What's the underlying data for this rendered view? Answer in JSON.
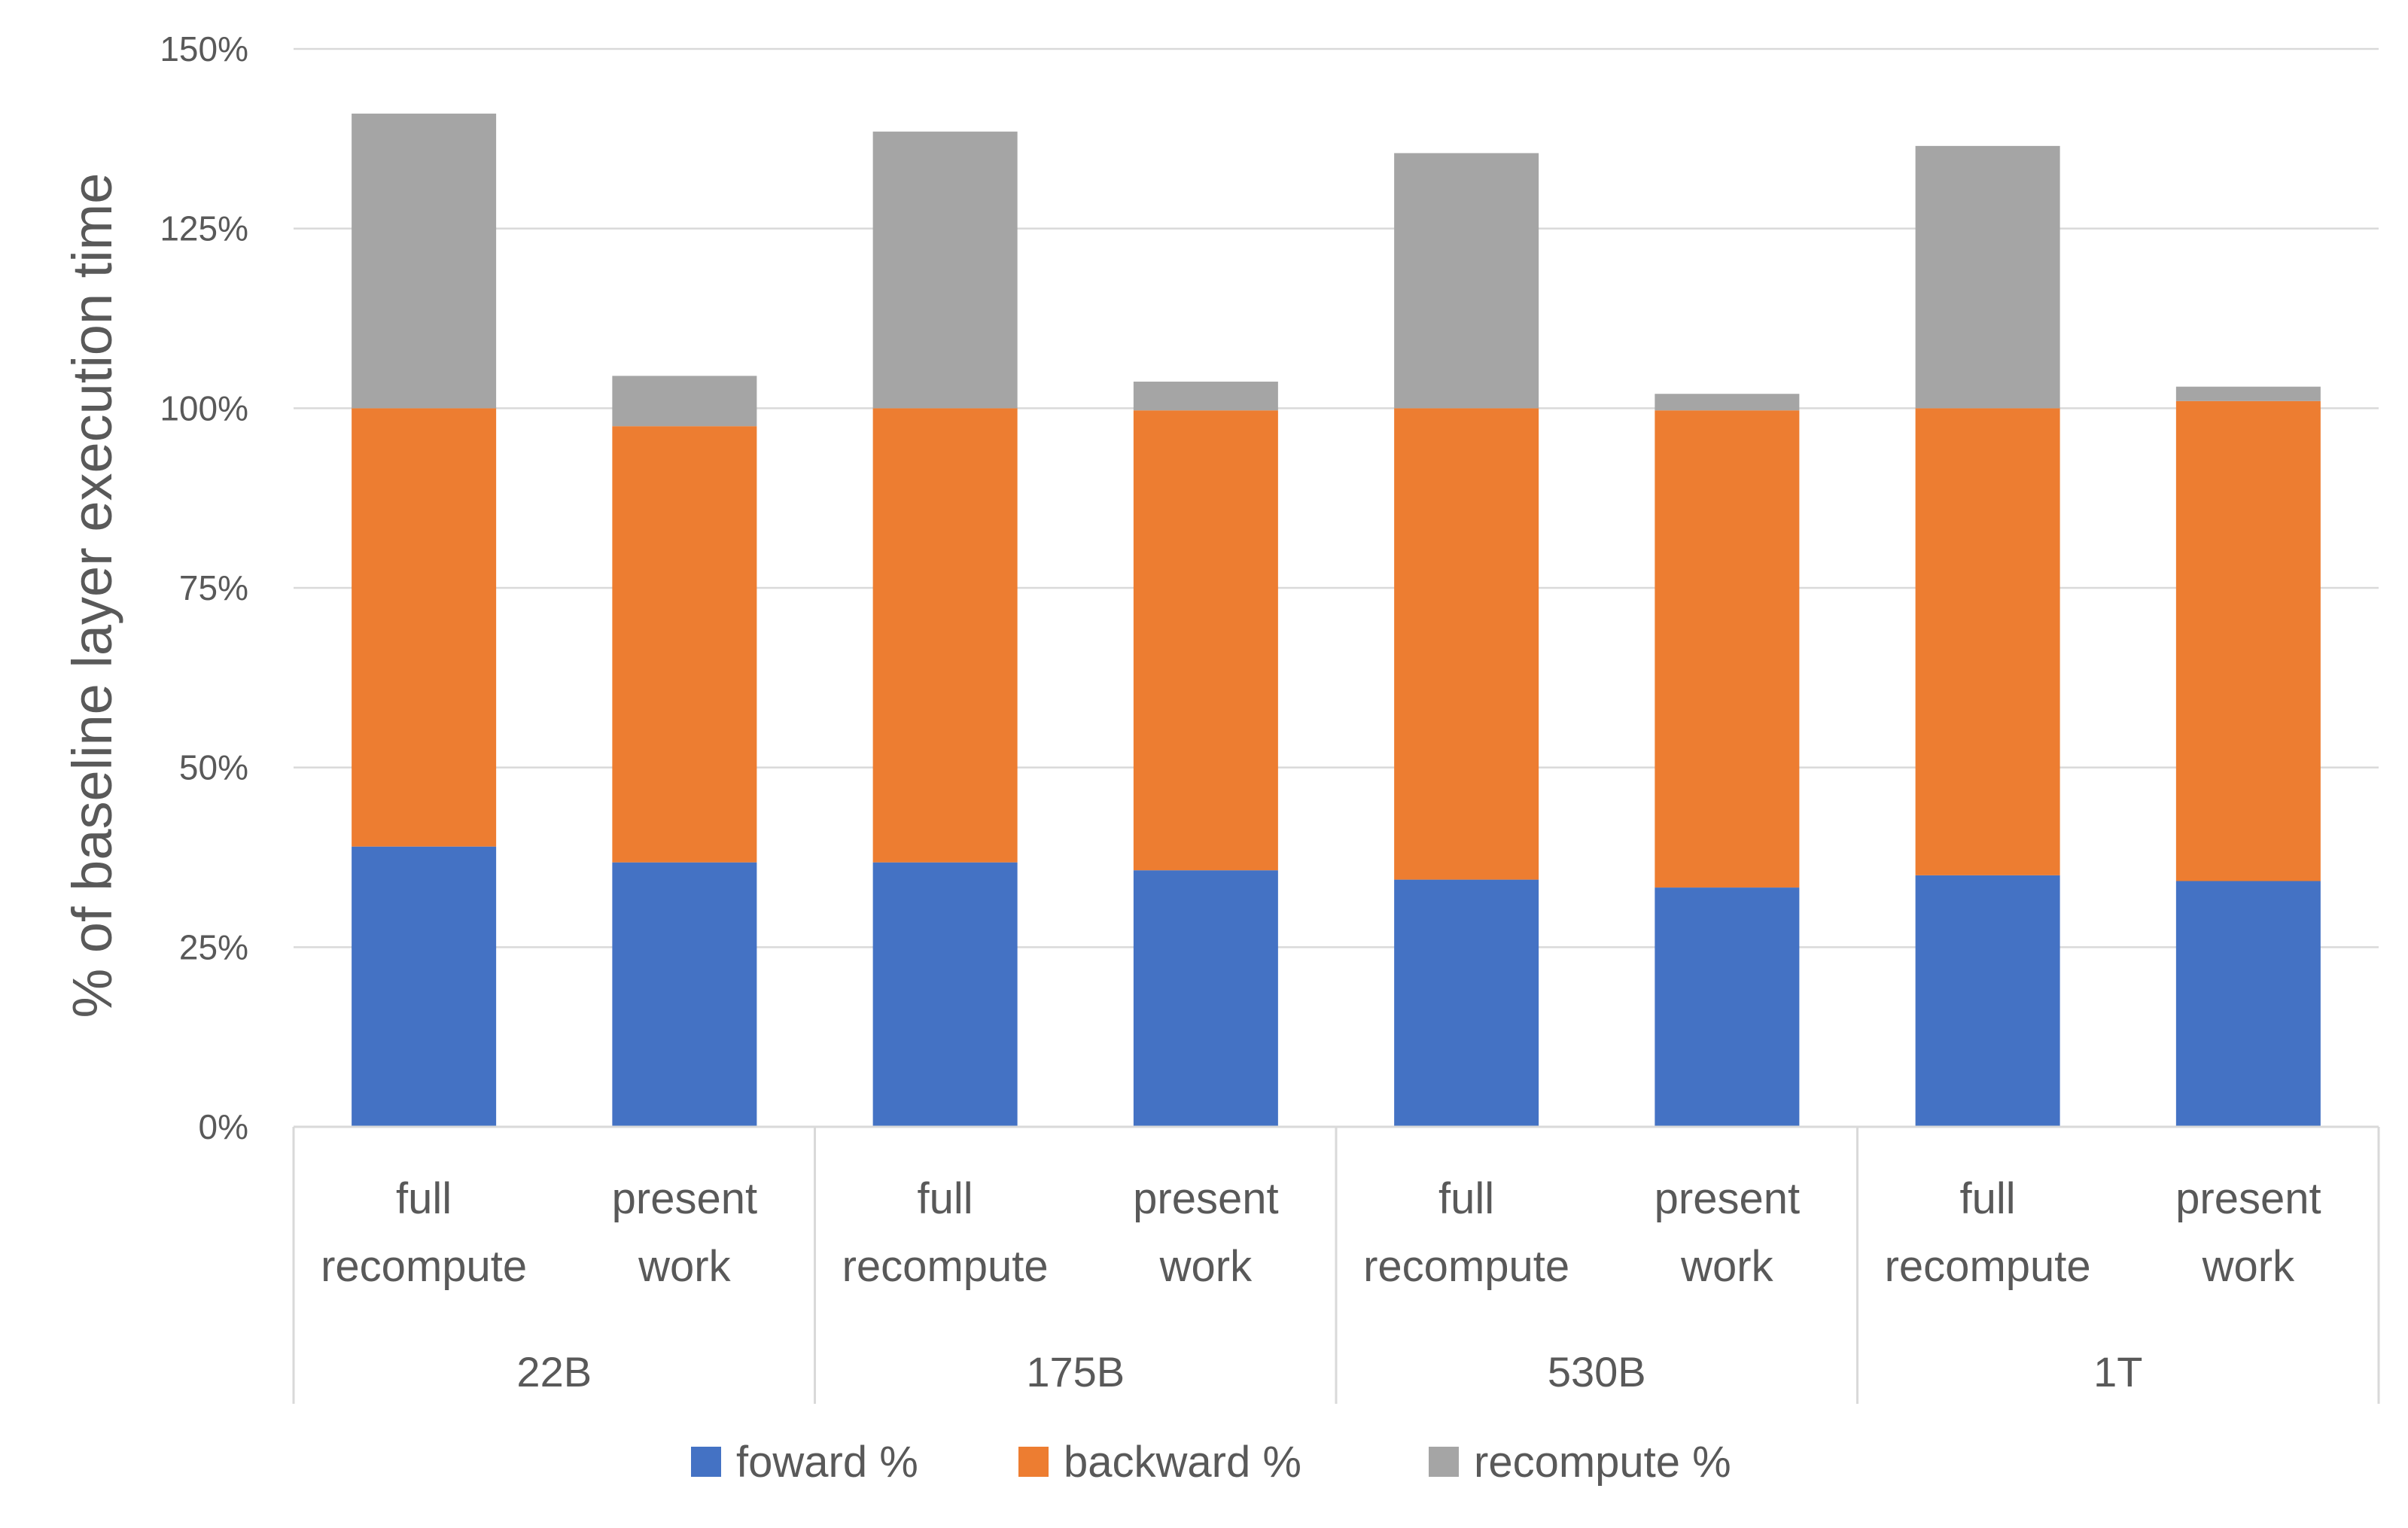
{
  "chart_data": {
    "type": "bar",
    "stacked": true,
    "title": "",
    "ylabel": "% of baseline layer execution time",
    "xlabel": "",
    "ylim": [
      0,
      150
    ],
    "yticks": [
      0,
      25,
      50,
      75,
      100,
      125,
      150
    ],
    "ytick_labels": [
      "0%",
      "25%",
      "50%",
      "75%",
      "100%",
      "125%",
      "150%"
    ],
    "grid": true,
    "legend_position": "bottom",
    "groups": [
      {
        "label": "22B",
        "bars": [
          {
            "label_lines": [
              "full",
              "recompute"
            ],
            "values": [
              39,
              61,
              41
            ]
          },
          {
            "label_lines": [
              "present",
              "work"
            ],
            "values": [
              36.8,
              60.7,
              7
            ]
          }
        ]
      },
      {
        "label": "175B",
        "bars": [
          {
            "label_lines": [
              "full",
              "recompute"
            ],
            "values": [
              36.8,
              63.2,
              38.5
            ]
          },
          {
            "label_lines": [
              "present",
              "work"
            ],
            "values": [
              35.7,
              64,
              4
            ]
          }
        ]
      },
      {
        "label": "530B",
        "bars": [
          {
            "label_lines": [
              "full",
              "recompute"
            ],
            "values": [
              34.4,
              65.6,
              35.5
            ]
          },
          {
            "label_lines": [
              "present",
              "work"
            ],
            "values": [
              33.3,
              66.4,
              2.3
            ]
          }
        ]
      },
      {
        "label": "1T",
        "bars": [
          {
            "label_lines": [
              "full",
              "recompute"
            ],
            "values": [
              35,
              65,
              36.5
            ]
          },
          {
            "label_lines": [
              "present",
              "work"
            ],
            "values": [
              34.2,
              66.8,
              2
            ]
          }
        ]
      }
    ],
    "series": [
      {
        "name": "foward %",
        "color": "#4472c4"
      },
      {
        "name": "backward %",
        "color": "#ed7d31"
      },
      {
        "name": "recompute %",
        "color": "#a5a5a5"
      }
    ]
  }
}
